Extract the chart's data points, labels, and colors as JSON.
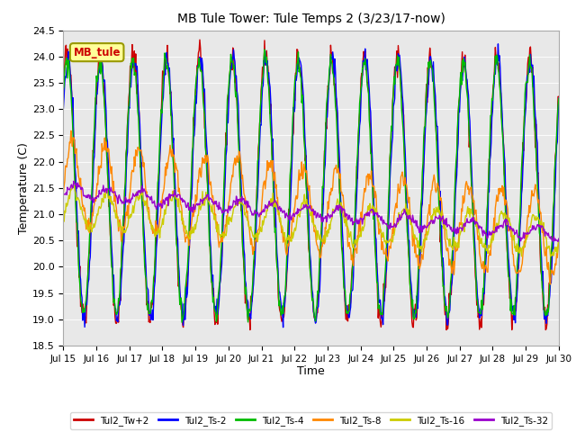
{
  "title": "MB Tule Tower: Tule Temps 2 (3/23/17-now)",
  "xlabel": "Time",
  "ylabel": "Temperature (C)",
  "ylim": [
    18.5,
    24.5
  ],
  "xlim": [
    0,
    15
  ],
  "xtick_labels": [
    "Jul 15",
    "Jul 16",
    "Jul 17",
    "Jul 18",
    "Jul 19",
    "Jul 20",
    "Jul 21",
    "Jul 22",
    "Jul 23",
    "Jul 24",
    "Jul 25",
    "Jul 26",
    "Jul 27",
    "Jul 28",
    "Jul 29",
    "Jul 30"
  ],
  "series_order": [
    "Tul2_Tw+2",
    "Tul2_Ts-2",
    "Tul2_Ts-4",
    "Tul2_Ts-8",
    "Tul2_Ts-16",
    "Tul2_Ts-32"
  ],
  "series": {
    "Tul2_Tw+2": {
      "color": "#cc0000",
      "lw": 1.0
    },
    "Tul2_Ts-2": {
      "color": "#0000ff",
      "lw": 1.0
    },
    "Tul2_Ts-4": {
      "color": "#00bb00",
      "lw": 1.0
    },
    "Tul2_Ts-8": {
      "color": "#ff8800",
      "lw": 1.0
    },
    "Tul2_Ts-16": {
      "color": "#cccc00",
      "lw": 1.0
    },
    "Tul2_Ts-32": {
      "color": "#9900cc",
      "lw": 1.0
    }
  },
  "legend_box_color": "#ffff99",
  "legend_box_label": "MB_tule",
  "legend_box_text_color": "#cc0000",
  "bg_color": "#e8e8e8"
}
